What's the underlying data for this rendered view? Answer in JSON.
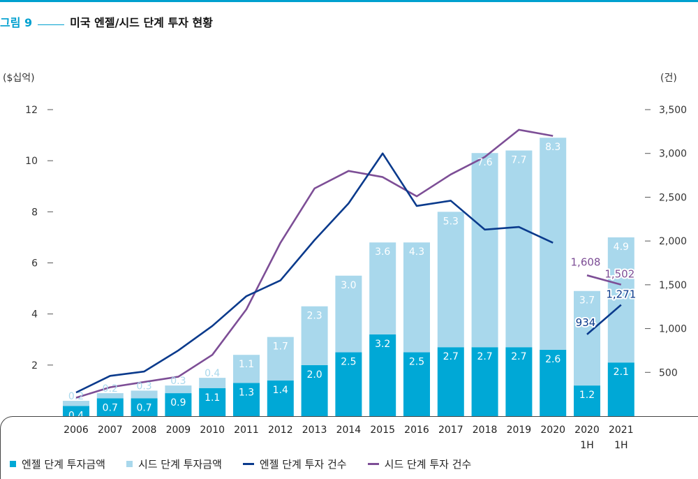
{
  "figure": {
    "number": "그림 9",
    "title": "미국 엔젤/시드 단계 투자 현황"
  },
  "chart_data": {
    "type": "bar",
    "stacked": true,
    "categories": [
      "2006",
      "2007",
      "2008",
      "2009",
      "2010",
      "2011",
      "2012",
      "2013",
      "2014",
      "2015",
      "2016",
      "2017",
      "2018",
      "2019",
      "2020",
      "2020\n1H",
      "2021\n1H"
    ],
    "y_left": {
      "unit": "($십억)",
      "ticks": [
        "2",
        "4",
        "6",
        "8",
        "10",
        "12"
      ],
      "ylim": [
        0,
        12
      ]
    },
    "y_right": {
      "unit": "(건)",
      "ticks": [
        "500",
        "1,000",
        "1,500",
        "2,000",
        "2,500",
        "3,000",
        "3,500"
      ],
      "ylim": [
        0,
        3500
      ]
    },
    "series": [
      {
        "name": "엔젤 단계 투자금액",
        "type": "bar",
        "axis": "left",
        "color": "#00a8d6",
        "values": [
          0.4,
          0.7,
          0.7,
          0.9,
          1.1,
          1.3,
          1.4,
          2.0,
          2.5,
          3.2,
          2.5,
          2.7,
          2.7,
          2.7,
          2.6,
          1.2,
          2.1
        ],
        "labels": [
          "0.4",
          "0.7",
          "0.7",
          "0.9",
          "1.1",
          "1.3",
          "1.4",
          "2.0",
          "2.5",
          "3.2",
          "2.5",
          "2.7",
          "2.7",
          "2.7",
          "2.6",
          "1.2",
          "2.1"
        ]
      },
      {
        "name": "시드 단계 투자금액",
        "type": "bar",
        "axis": "left",
        "color": "#a9d8ec",
        "values": [
          0.2,
          0.2,
          0.3,
          0.3,
          0.4,
          1.1,
          1.7,
          2.3,
          3.0,
          3.6,
          4.3,
          5.3,
          7.6,
          7.7,
          8.3,
          3.7,
          4.9
        ],
        "labels": [
          "0.2",
          "0.2",
          "0.3",
          "0.3",
          "0.4",
          "1.1",
          "1.7",
          "2.3",
          "3.0",
          "3.6",
          "4.3",
          "5.3",
          "7.6",
          "7.7",
          "8.3",
          "3.7",
          "4.9"
        ]
      },
      {
        "name": "엔젤 단계 투자 건수",
        "type": "line",
        "axis": "right",
        "color": "#0a3a8c",
        "segments": [
          [
            270,
            460,
            510,
            750,
            1030,
            1370,
            1550,
            2010,
            2430,
            3000,
            2400,
            2460,
            2130,
            2160,
            1980
          ],
          [
            934,
            1271
          ]
        ],
        "point_labels": [
          "934",
          "1,271"
        ]
      },
      {
        "name": "시드 단계 투자 건수",
        "type": "line",
        "axis": "right",
        "color": "#7d4e96",
        "segments": [
          [
            210,
            330,
            390,
            450,
            700,
            1220,
            1980,
            2600,
            2800,
            2730,
            2510,
            2760,
            2960,
            3270,
            3200
          ],
          [
            1608,
            1502
          ]
        ],
        "point_labels": [
          "1,608",
          "1,502"
        ]
      }
    ],
    "legend_position": "bottom-left",
    "grid": false
  }
}
